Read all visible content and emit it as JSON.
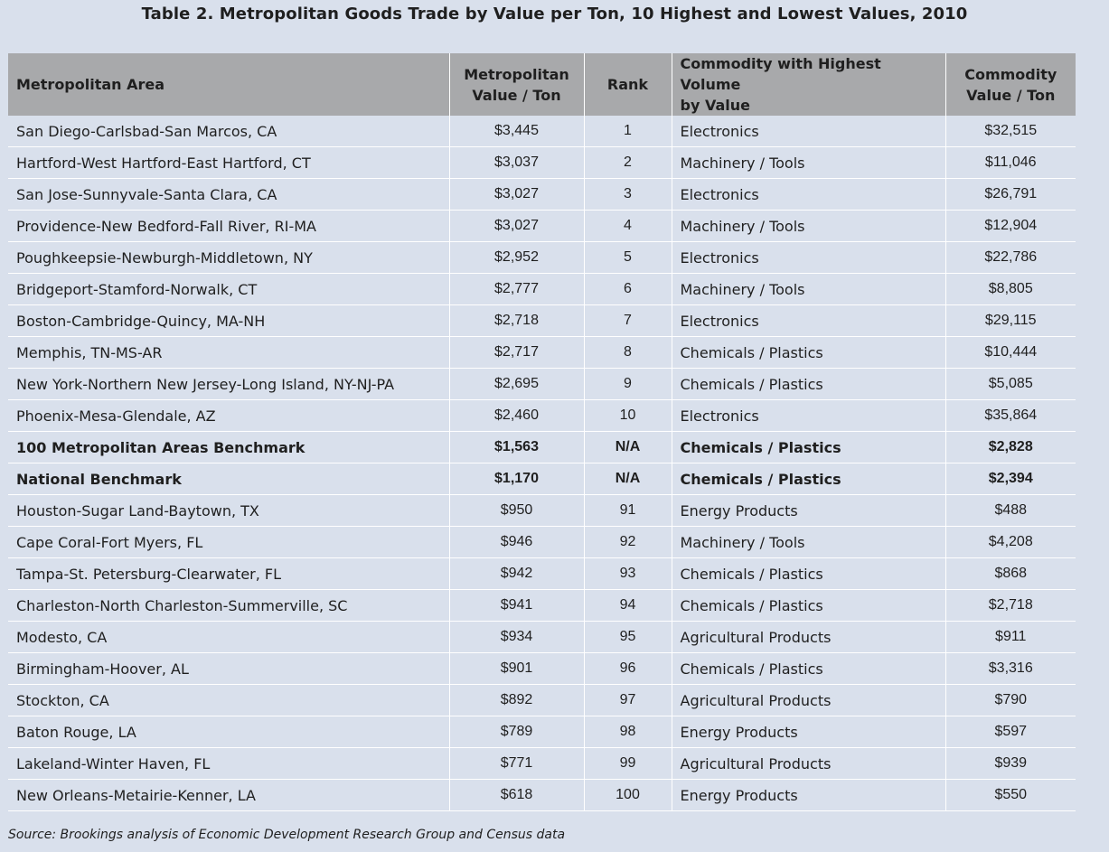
{
  "title": "Table 2. Metropolitan Goods Trade by Value per Ton, 10 Highest and Lowest Values, 2010",
  "columns": {
    "area": "Metropolitan Area",
    "metro_value_l1": "Metropolitan",
    "metro_value_l2": "Value / Ton",
    "rank": "Rank",
    "commodity_l1": "Commodity with Highest Volume",
    "commodity_l2": "by Value",
    "commodity_value_l1": "Commodity",
    "commodity_value_l2": "Value / Ton"
  },
  "rows": [
    {
      "area": "San Diego-Carlsbad-San Marcos, CA",
      "metro_value": "$3,445",
      "rank": "1",
      "commodity": "Electronics",
      "commodity_value": "$32,515"
    },
    {
      "area": "Hartford-West Hartford-East Hartford, CT",
      "metro_value": "$3,037",
      "rank": "2",
      "commodity": "Machinery / Tools",
      "commodity_value": "$11,046"
    },
    {
      "area": "San Jose-Sunnyvale-Santa Clara, CA",
      "metro_value": "$3,027",
      "rank": "3",
      "commodity": "Electronics",
      "commodity_value": "$26,791"
    },
    {
      "area": "Providence-New Bedford-Fall River, RI-MA",
      "metro_value": "$3,027",
      "rank": "4",
      "commodity": "Machinery / Tools",
      "commodity_value": "$12,904"
    },
    {
      "area": "Poughkeepsie-Newburgh-Middletown, NY",
      "metro_value": "$2,952",
      "rank": "5",
      "commodity": "Electronics",
      "commodity_value": "$22,786"
    },
    {
      "area": "Bridgeport-Stamford-Norwalk, CT",
      "metro_value": "$2,777",
      "rank": "6",
      "commodity": "Machinery / Tools",
      "commodity_value": "$8,805"
    },
    {
      "area": "Boston-Cambridge-Quincy, MA-NH",
      "metro_value": "$2,718",
      "rank": "7",
      "commodity": "Electronics",
      "commodity_value": "$29,115"
    },
    {
      "area": "Memphis, TN-MS-AR",
      "metro_value": "$2,717",
      "rank": "8",
      "commodity": "Chemicals / Plastics",
      "commodity_value": "$10,444"
    },
    {
      "area": "New York-Northern New Jersey-Long Island, NY-NJ-PA",
      "metro_value": "$2,695",
      "rank": "9",
      "commodity": "Chemicals / Plastics",
      "commodity_value": "$5,085"
    },
    {
      "area": "Phoenix-Mesa-Glendale, AZ",
      "metro_value": "$2,460",
      "rank": "10",
      "commodity": "Electronics",
      "commodity_value": "$35,864"
    },
    {
      "area": "100 Metropolitan Areas Benchmark",
      "metro_value": "$1,563",
      "rank": "N/A",
      "commodity": "Chemicals / Plastics",
      "commodity_value": "$2,828"
    },
    {
      "area": "National Benchmark",
      "metro_value": "$1,170",
      "rank": "N/A",
      "commodity": "Chemicals / Plastics",
      "commodity_value": "$2,394"
    },
    {
      "area": "Houston-Sugar Land-Baytown, TX",
      "metro_value": "$950",
      "rank": "91",
      "commodity": "Energy Products",
      "commodity_value": "$488"
    },
    {
      "area": "Cape Coral-Fort Myers, FL",
      "metro_value": "$946",
      "rank": "92",
      "commodity": "Machinery / Tools",
      "commodity_value": "$4,208"
    },
    {
      "area": "Tampa-St. Petersburg-Clearwater, FL",
      "metro_value": "$942",
      "rank": "93",
      "commodity": "Chemicals / Plastics",
      "commodity_value": "$868"
    },
    {
      "area": "Charleston-North Charleston-Summerville, SC",
      "metro_value": "$941",
      "rank": "94",
      "commodity": "Chemicals / Plastics",
      "commodity_value": "$2,718"
    },
    {
      "area": "Modesto, CA",
      "metro_value": "$934",
      "rank": "95",
      "commodity": "Agricultural Products",
      "commodity_value": "$911"
    },
    {
      "area": "Birmingham-Hoover, AL",
      "metro_value": "$901",
      "rank": "96",
      "commodity": "Chemicals / Plastics",
      "commodity_value": "$3,316"
    },
    {
      "area": "Stockton, CA",
      "metro_value": "$892",
      "rank": "97",
      "commodity": "Agricultural Products",
      "commodity_value": "$790"
    },
    {
      "area": "Baton Rouge, LA",
      "metro_value": "$789",
      "rank": "98",
      "commodity": "Energy Products",
      "commodity_value": "$597"
    },
    {
      "area": "Lakeland-Winter Haven, FL",
      "metro_value": "$771",
      "rank": "99",
      "commodity": "Agricultural Products",
      "commodity_value": "$939"
    },
    {
      "area": "New Orleans-Metairie-Kenner, LA",
      "metro_value": "$618",
      "rank": "100",
      "commodity": "Energy Products",
      "commodity_value": "$550"
    }
  ],
  "source": "Source: Brookings analysis of Economic Development Research Group and Census data"
}
